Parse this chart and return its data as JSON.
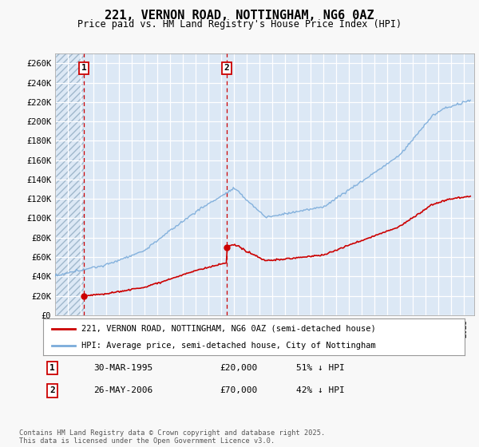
{
  "title": "221, VERNON ROAD, NOTTINGHAM, NG6 0AZ",
  "subtitle": "Price paid vs. HM Land Registry's House Price Index (HPI)",
  "ylabel_ticks": [
    "£0",
    "£20K",
    "£40K",
    "£60K",
    "£80K",
    "£100K",
    "£120K",
    "£140K",
    "£160K",
    "£180K",
    "£200K",
    "£220K",
    "£240K",
    "£260K"
  ],
  "ytick_vals": [
    0,
    20000,
    40000,
    60000,
    80000,
    100000,
    120000,
    140000,
    160000,
    180000,
    200000,
    220000,
    240000,
    260000
  ],
  "ylim": [
    0,
    270000
  ],
  "xlim_start": 1993.0,
  "xlim_end": 2025.8,
  "fig_bg_color": "#f8f8f8",
  "plot_bg_color": "#dce8f5",
  "hatch_bg_color": "#c8d8e8",
  "grid_color": "#ffffff",
  "line_color_red": "#cc0000",
  "line_color_blue": "#7aabda",
  "marker1_x": 1995.25,
  "marker1_y": 20000,
  "marker1_label": "1",
  "marker2_x": 2006.42,
  "marker2_y": 70000,
  "marker2_label": "2",
  "table_row1": [
    "1",
    "30-MAR-1995",
    "£20,000",
    "51% ↓ HPI"
  ],
  "table_row2": [
    "2",
    "26-MAY-2006",
    "£70,000",
    "42% ↓ HPI"
  ],
  "legend_line1": "221, VERNON ROAD, NOTTINGHAM, NG6 0AZ (semi-detached house)",
  "legend_line2": "HPI: Average price, semi-detached house, City of Nottingham",
  "copyright": "Contains HM Land Registry data © Crown copyright and database right 2025.\nThis data is licensed under the Open Government Licence v3.0."
}
